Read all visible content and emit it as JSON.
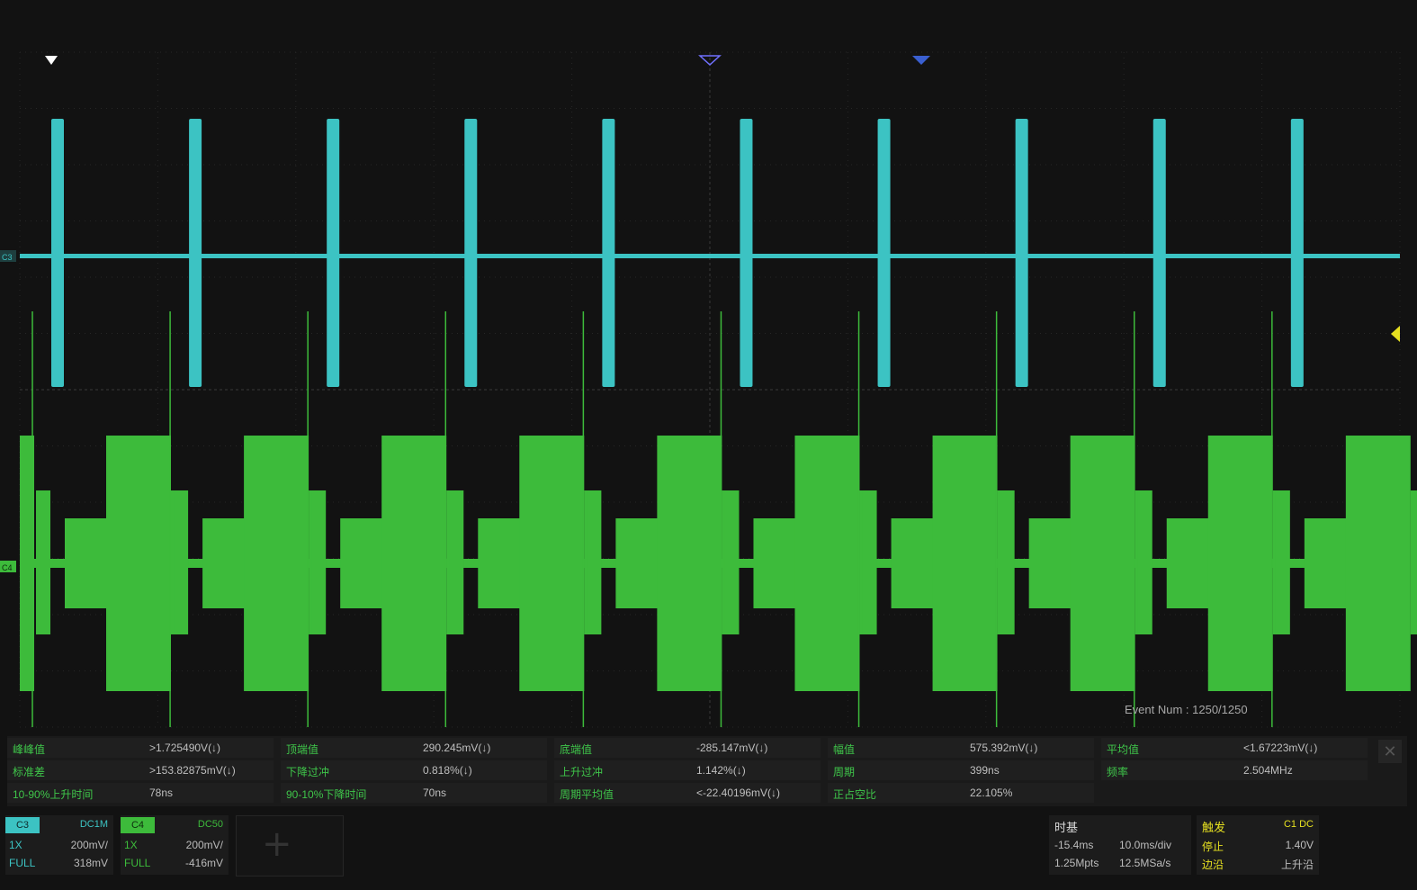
{
  "screen": {
    "event_num": "Event Num : 1250/1250",
    "channel_markers": {
      "c3": "C3",
      "c4": "C4"
    }
  },
  "waveforms": {
    "c3": {
      "color": "#3cc3c3",
      "pulse_count": 10,
      "description_level": "pulse"
    },
    "c4": {
      "color": "#3dbb3b",
      "burst_count": 10
    }
  },
  "measurements": {
    "rows": [
      [
        {
          "label": "峰峰值",
          "value": ">1.725490V(↓)"
        },
        {
          "label": "顶端值",
          "value": "290.245mV(↓)"
        },
        {
          "label": "底端值",
          "value": "-285.147mV(↓)"
        },
        {
          "label": "幅值",
          "value": "575.392mV(↓)"
        },
        {
          "label": "平均值",
          "value": "<1.67223mV(↓)"
        }
      ],
      [
        {
          "label": "标准差",
          "value": ">153.82875mV(↓)"
        },
        {
          "label": "下降过冲",
          "value": "0.818%(↓)"
        },
        {
          "label": "上升过冲",
          "value": "1.142%(↓)"
        },
        {
          "label": "周期",
          "value": "399ns"
        },
        {
          "label": "频率",
          "value": "2.504MHz"
        }
      ],
      [
        {
          "label": "10-90%上升时间",
          "value": "78ns"
        },
        {
          "label": "90-10%下降时间",
          "value": "70ns"
        },
        {
          "label": "周期平均值",
          "value": "<-22.40196mV(↓)"
        },
        {
          "label": "正占空比",
          "value": "22.105%"
        }
      ]
    ],
    "close_label": "✕"
  },
  "channels": [
    {
      "tag": "C3",
      "coupling": "DC1M",
      "probe": "1X",
      "scale": "200mV/",
      "bw": "FULL",
      "offset": "318mV",
      "color": "#3cc3c3"
    },
    {
      "tag": "C4",
      "coupling": "DC50",
      "probe": "1X",
      "scale": "200mV/",
      "bw": "FULL",
      "offset": "-416mV",
      "color": "#3dbb3b"
    }
  ],
  "timebase": {
    "title": "时基",
    "delay": "-15.4ms",
    "scale": "10.0ms/div",
    "depth": "1.25Mpts",
    "rate": "12.5MSa/s"
  },
  "trigger": {
    "title": "触发",
    "source": "C1 DC",
    "state": "停止",
    "level": "1.40V",
    "type_label": "边沿",
    "slope": "上升沿"
  }
}
